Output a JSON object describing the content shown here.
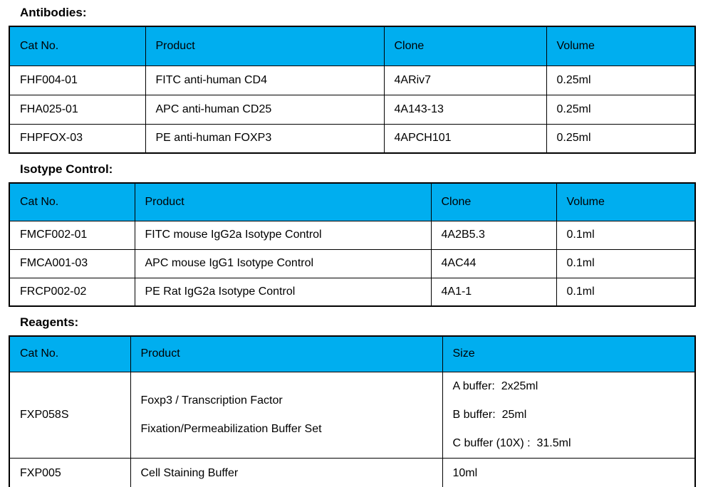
{
  "colors": {
    "header_background": "#00AEEF",
    "border": "#000000",
    "text": "#000000",
    "page_background": "#FFFFFF"
  },
  "sections": [
    {
      "title": "Antibodies:",
      "columns": [
        "Cat No.",
        "Product",
        "Clone",
        "Volume"
      ],
      "rows": [
        [
          "FHF004-01",
          "FITC anti-human CD4",
          "4ARiv7",
          "0.25ml"
        ],
        [
          "FHA025-01",
          "APC anti-human CD25",
          "4A143-13",
          "0.25ml"
        ],
        [
          "FHPFOX-03",
          "PE anti-human FOXP3",
          "4APCH101",
          "0.25ml"
        ]
      ]
    },
    {
      "title": "Isotype Control:",
      "columns": [
        "Cat No.",
        "Product",
        "Clone",
        "Volume"
      ],
      "rows": [
        [
          "FMCF002-01",
          "FITC mouse IgG2a Isotype Control",
          "4A2B5.3",
          "0.1ml"
        ],
        [
          "FMCA001-03",
          "APC mouse IgG1 Isotype Control",
          "4AC44",
          "0.1ml"
        ],
        [
          "FRCP002-02",
          "PE Rat IgG2a Isotype Control",
          "4A1-1",
          "0.1ml"
        ]
      ]
    },
    {
      "title": "Reagents:",
      "columns": [
        "Cat No.",
        "Product",
        "Size"
      ],
      "rows": [
        [
          "FXP058S",
          [
            "Foxp3 / Transcription Factor",
            "Fixation/Permeabilization Buffer Set"
          ],
          [
            "A buffer:  2x25ml",
            "B buffer:  25ml",
            "C buffer (10X) :  31.5ml"
          ]
        ],
        [
          "FXP005",
          "Cell Staining Buffer",
          "10ml"
        ]
      ]
    }
  ]
}
